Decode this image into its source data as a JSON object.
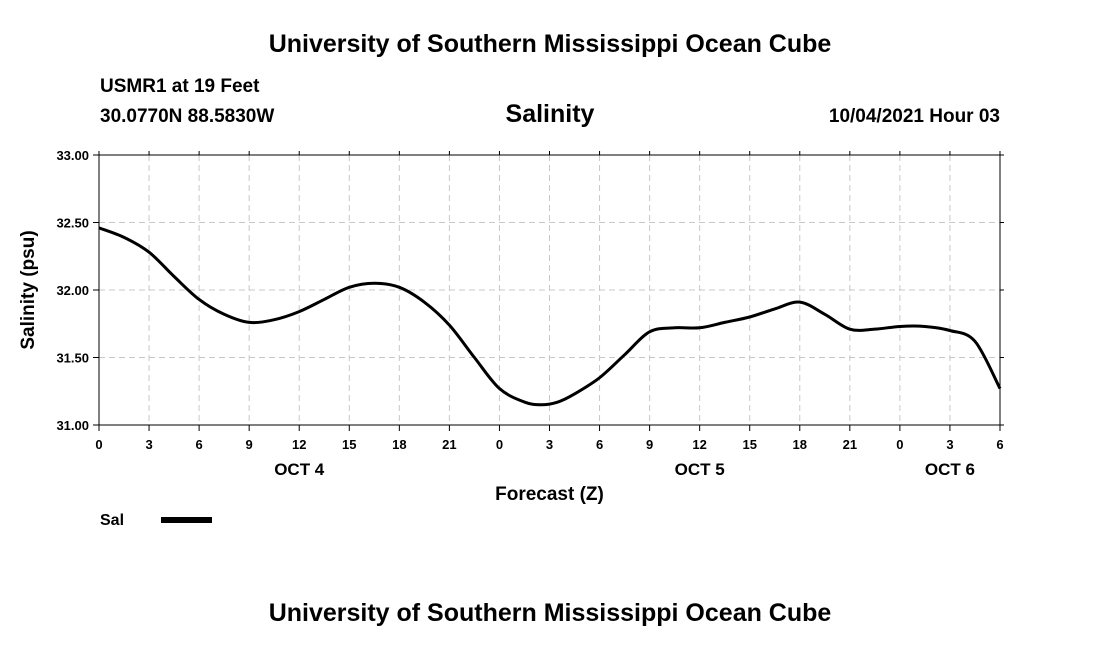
{
  "header": {
    "title": "University of Southern Mississippi Ocean Cube",
    "station": "USMR1 at 19 Feet",
    "coords": "30.0770N  88.5830W",
    "parameter": "Salinity",
    "datetime": "10/04/2021 Hour 03"
  },
  "footer": {
    "title": "University of Southern Mississippi Ocean Cube"
  },
  "chart_data": {
    "type": "line",
    "title": "Salinity",
    "xlabel": "Forecast (Z)",
    "ylabel": "Salinity (psu)",
    "xlim": [
      0,
      54
    ],
    "ylim": [
      31.0,
      33.0
    ],
    "grid": true,
    "x_tick_values": [
      0,
      3,
      6,
      9,
      12,
      15,
      18,
      21,
      24,
      27,
      30,
      33,
      36,
      39,
      42,
      45,
      48,
      51,
      54
    ],
    "x_tick_labels": [
      "0",
      "3",
      "6",
      "9",
      "12",
      "15",
      "18",
      "21",
      "0",
      "3",
      "6",
      "9",
      "12",
      "15",
      "18",
      "21",
      "0",
      "3",
      "6"
    ],
    "y_ticks": [
      31.0,
      31.5,
      32.0,
      32.5,
      33.0
    ],
    "y_tick_labels": [
      "31.00",
      "31.50",
      "32.00",
      "32.50",
      "33.00"
    ],
    "date_labels": [
      {
        "x": 12,
        "label": "OCT 4"
      },
      {
        "x": 36,
        "label": "OCT 5"
      },
      {
        "x": 51,
        "label": "OCT 6"
      }
    ],
    "series": [
      {
        "name": "Sal",
        "color": "#000000",
        "x": [
          0,
          1.5,
          3,
          4.5,
          6,
          7.5,
          9,
          10.5,
          12,
          13.5,
          15,
          16.5,
          18,
          19.5,
          21,
          22.5,
          24,
          25.5,
          26.5,
          27.5,
          28.5,
          30,
          31.5,
          33,
          34.5,
          36,
          37.5,
          39,
          40.5,
          42,
          43.5,
          45,
          46.5,
          48,
          49.5,
          51,
          52.5,
          54
        ],
        "values": [
          32.46,
          32.39,
          32.28,
          32.1,
          31.93,
          31.82,
          31.76,
          31.78,
          31.84,
          31.93,
          32.02,
          32.05,
          32.02,
          31.91,
          31.74,
          31.5,
          31.27,
          31.17,
          31.15,
          31.17,
          31.23,
          31.35,
          31.52,
          31.69,
          31.72,
          31.72,
          31.76,
          31.8,
          31.86,
          31.91,
          31.82,
          31.71,
          31.71,
          31.73,
          31.73,
          31.7,
          31.62,
          31.27
        ]
      }
    ]
  }
}
